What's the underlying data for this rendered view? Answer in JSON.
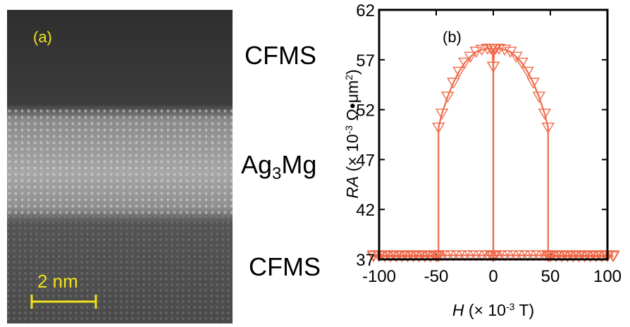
{
  "panel_a": {
    "label": "(a)",
    "scale_bar_label": "2 nm",
    "layers": {
      "top": "CFMS",
      "middle_base": "Ag",
      "middle_sub": "3",
      "middle_tail": "Mg",
      "bottom": "CFMS"
    },
    "accent_color": "#f2e21a"
  },
  "chart_data": {
    "type": "line",
    "panel_label": "(b)",
    "xlabel_italic": "H",
    "xlabel_rest": " (× 10",
    "xlabel_sup": "-3",
    "xlabel_tail": " T)",
    "ylabel_italic": "RA",
    "ylabel_rest": " (× 10",
    "ylabel_sup": "-3",
    "ylabel_tail": " Ω•μm",
    "ylabel_sup2": "2",
    "ylabel_close": ")",
    "xlim": [
      -100,
      100
    ],
    "ylim": [
      37,
      62
    ],
    "xticks": [
      -100,
      -50,
      0,
      50,
      100
    ],
    "yticks": [
      37,
      42,
      47,
      52,
      57,
      62
    ],
    "xtick_labels": [
      "-100",
      "-50",
      "0",
      "50",
      "100"
    ],
    "ytick_labels": [
      "37",
      "42",
      "47",
      "52",
      "57",
      "62"
    ],
    "color": "#f06a4a",
    "marker": "triangle-down",
    "series": [
      {
        "x": [
          -105,
          -100,
          -95,
          -90,
          -85,
          -80,
          -75,
          -70,
          -65,
          -60,
          -55,
          -50,
          -48,
          -48,
          -45,
          -40,
          -35,
          -30,
          -25,
          -20,
          -15,
          -10,
          -5,
          -2,
          -1,
          0,
          0,
          2,
          5,
          10,
          15,
          20,
          25,
          30,
          35,
          40,
          45,
          48,
          48,
          50,
          55,
          60,
          65,
          70,
          75,
          80,
          85,
          90,
          95,
          100,
          105
        ],
        "y": [
          37.3,
          37.3,
          37.3,
          37.3,
          37.3,
          37.3,
          37.3,
          37.3,
          37.3,
          37.3,
          37.3,
          37.3,
          37.3,
          50.2,
          51.6,
          53.3,
          54.7,
          55.8,
          56.7,
          57.3,
          57.8,
          58,
          58.1,
          58.1,
          58.1,
          56.3,
          37.3,
          37.4,
          37.4,
          37.4,
          37.4,
          37.4,
          37.4,
          37.4,
          37.4,
          37.4,
          37.4,
          37.4,
          37.4,
          37.4,
          37.4,
          37.4,
          37.4,
          37.4,
          37.4,
          37.4,
          37.4,
          37.4,
          37.4,
          37.4,
          37.4
        ]
      },
      {
        "x": [
          105,
          100,
          95,
          90,
          85,
          80,
          75,
          70,
          65,
          60,
          55,
          50,
          48,
          48,
          45,
          40,
          35,
          30,
          25,
          20,
          15,
          10,
          5,
          2,
          1,
          0,
          0,
          -2,
          -5,
          -10,
          -15,
          -20,
          -25,
          -30,
          -35,
          -40,
          -45,
          -48,
          -48,
          -50,
          -55,
          -60,
          -65,
          -70,
          -75,
          -80,
          -85,
          -90,
          -95,
          -100,
          -105
        ],
        "y": [
          37.3,
          37.3,
          37.3,
          37.3,
          37.3,
          37.3,
          37.3,
          37.3,
          37.3,
          37.3,
          37.3,
          37.3,
          37.3,
          50.2,
          51.6,
          53.3,
          54.7,
          55.8,
          56.7,
          57.3,
          57.8,
          58,
          58.1,
          58.1,
          58.1,
          56.3,
          37.3,
          37.4,
          37.4,
          37.4,
          37.4,
          37.4,
          37.4,
          37.4,
          37.4,
          37.4,
          37.4,
          37.4,
          37.4,
          37.4,
          37.4,
          37.4,
          37.4,
          37.4,
          37.4,
          37.4,
          37.4,
          37.4,
          37.4,
          37.4,
          37.4
        ]
      }
    ]
  }
}
